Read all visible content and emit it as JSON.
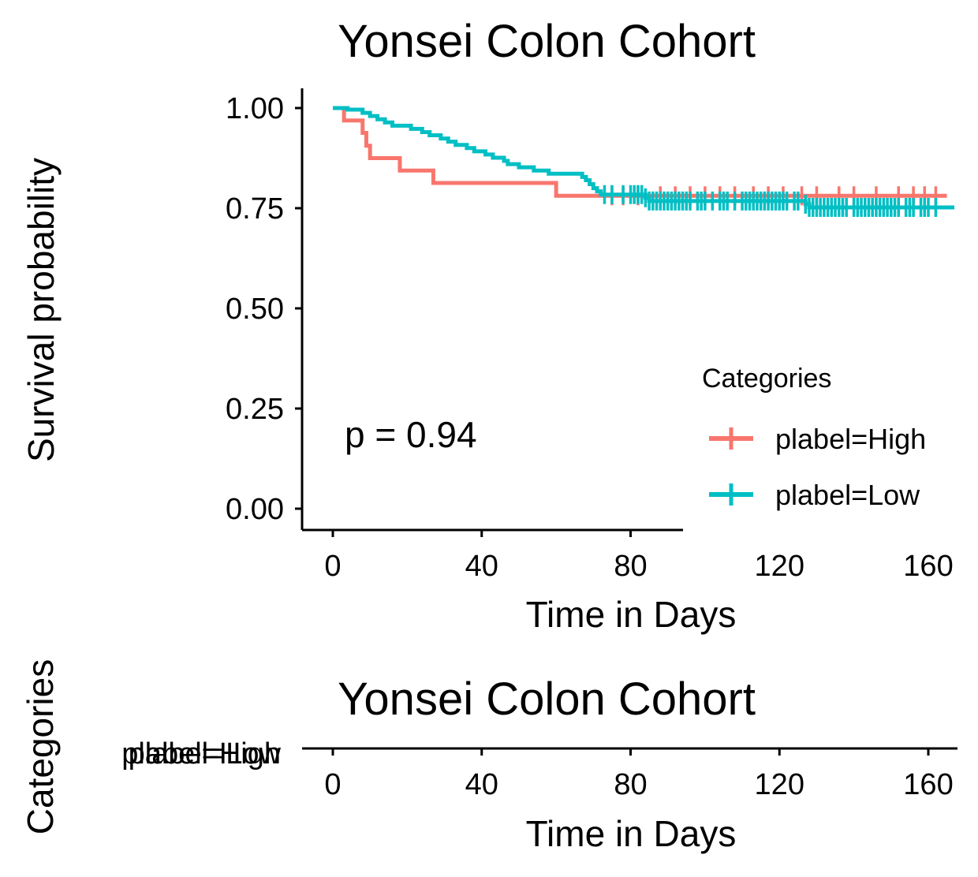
{
  "colors": {
    "high": "#F8766D",
    "low": "#00BFC4"
  },
  "chart_data": [
    {
      "type": "line",
      "title": "Yonsei Colon Cohort",
      "xlabel": "Time in Days",
      "ylabel": "Survival probability",
      "xlim": [
        -8,
        168
      ],
      "ylim": [
        -0.05,
        1.05
      ],
      "x_ticks": [
        "0",
        "40",
        "80",
        "120",
        "160"
      ],
      "y_ticks": [
        "0.00",
        "0.25",
        "0.50",
        "0.75",
        "1.00"
      ],
      "annotation": "p = 0.94",
      "legend": {
        "title": "Categories",
        "position": "right",
        "entries": [
          "plabel=High",
          "plabel=Low"
        ]
      },
      "series": [
        {
          "name": "plabel=High",
          "color": "#F8766D",
          "steps": [
            [
              0,
              1.0
            ],
            [
              3,
              0.969
            ],
            [
              8,
              0.938
            ],
            [
              9,
              0.906
            ],
            [
              10,
              0.875
            ],
            [
              18,
              0.844
            ],
            [
              27,
              0.813
            ],
            [
              60,
              0.781
            ],
            [
              165,
              0.781
            ]
          ],
          "censor": [
            75,
            78,
            82,
            88,
            92,
            96,
            100,
            104,
            108,
            113,
            117,
            121,
            126,
            130,
            136,
            140,
            146,
            152,
            156,
            159,
            162
          ]
        },
        {
          "name": "plabel=Low",
          "color": "#00BFC4",
          "steps": [
            [
              0,
              1.0
            ],
            [
              4,
              0.996
            ],
            [
              8,
              0.988
            ],
            [
              10,
              0.98
            ],
            [
              12,
              0.972
            ],
            [
              14,
              0.964
            ],
            [
              16,
              0.956
            ],
            [
              21,
              0.948
            ],
            [
              24,
              0.94
            ],
            [
              26,
              0.932
            ],
            [
              29,
              0.924
            ],
            [
              31,
              0.916
            ],
            [
              33,
              0.908
            ],
            [
              36,
              0.9
            ],
            [
              38,
              0.892
            ],
            [
              41,
              0.884
            ],
            [
              43,
              0.876
            ],
            [
              46,
              0.868
            ],
            [
              47,
              0.86
            ],
            [
              50,
              0.852
            ],
            [
              54,
              0.844
            ],
            [
              58,
              0.836
            ],
            [
              67,
              0.828
            ],
            [
              68,
              0.82
            ],
            [
              69,
              0.81
            ],
            [
              70,
              0.8
            ],
            [
              71,
              0.792
            ],
            [
              72,
              0.784
            ],
            [
              84,
              0.776
            ],
            [
              85,
              0.768
            ],
            [
              127,
              0.76
            ],
            [
              128,
              0.752
            ],
            [
              167,
              0.752
            ]
          ],
          "censor": [
            73,
            75,
            78,
            80,
            81,
            82,
            83,
            84,
            85,
            86,
            87,
            88,
            89,
            90,
            91,
            92,
            93,
            94,
            95,
            96,
            98,
            99,
            100,
            102,
            104,
            105,
            106,
            108,
            110,
            111,
            112,
            113,
            114,
            115,
            116,
            117,
            118,
            119,
            120,
            121,
            122,
            124,
            125,
            127,
            128,
            129,
            130,
            131,
            132,
            133,
            134,
            135,
            136,
            137,
            138,
            140,
            141,
            142,
            143,
            144,
            145,
            146,
            147,
            148,
            149,
            150,
            151,
            152,
            154,
            155,
            156,
            158,
            159,
            160,
            162
          ]
        }
      ]
    },
    {
      "type": "table",
      "title": "Yonsei Colon Cohort",
      "xlabel": "Time in Days",
      "ylabel": "Categories",
      "xlim": [
        -8,
        168
      ],
      "x_ticks": [
        "0",
        "40",
        "80",
        "120",
        "160"
      ],
      "row_labels": [
        "plabel=High",
        "plabel=Low"
      ]
    }
  ]
}
